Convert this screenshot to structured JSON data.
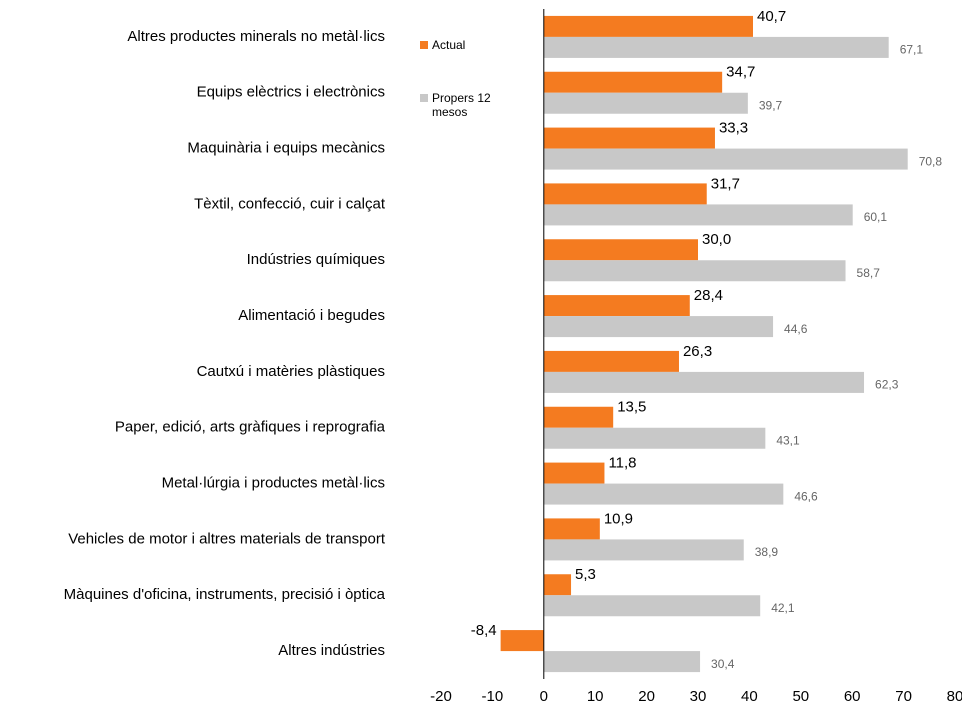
{
  "chart_data": {
    "type": "bar",
    "orientation": "horizontal",
    "categories": [
      "Altres productes minerals no metàl·lics",
      "Equips elèctrics i electrònics",
      "Maquinària i equips mecànics",
      "Tèxtil, confecció, cuir i calçat",
      "Indústries químiques",
      "Alimentació i begudes",
      "Cautxú i matèries plàstiques",
      "Paper, edició, arts gràfiques i reprografia",
      "Metal·lúrgia i productes metàl·lics",
      "Vehicles de motor i altres materials de transport",
      "Màquines d'oficina, instruments, precisió i òptica",
      "Altres indústries"
    ],
    "series": [
      {
        "name": "Actual",
        "color": "#f47b20",
        "values": [
          40.7,
          34.7,
          33.3,
          31.7,
          30.0,
          28.4,
          26.3,
          13.5,
          11.8,
          10.9,
          5.3,
          -8.4
        ],
        "value_labels": [
          "40,7",
          "34,7",
          "33,3",
          "31,7",
          "30,0",
          "28,4",
          "26,3",
          "13,5",
          "11,8",
          "10,9",
          "5,3",
          "-8,4"
        ]
      },
      {
        "name": "Propers 12 mesos",
        "color": "#c8c8c8",
        "values": [
          67.1,
          39.7,
          70.8,
          60.1,
          58.7,
          44.6,
          62.3,
          43.1,
          46.6,
          38.9,
          42.1,
          30.4
        ],
        "value_labels": [
          "67,1",
          "39,7",
          "70,8",
          "60,1",
          "58,7",
          "44,6",
          "62,3",
          "43,1",
          "46,6",
          "38,9",
          "42,1",
          "30,4"
        ]
      }
    ],
    "xlim": [
      -20,
      80
    ],
    "xticks": [
      -20,
      -10,
      0,
      10,
      20,
      30,
      40,
      50,
      60,
      70,
      80
    ],
    "grid": false,
    "legend": "upper left"
  }
}
